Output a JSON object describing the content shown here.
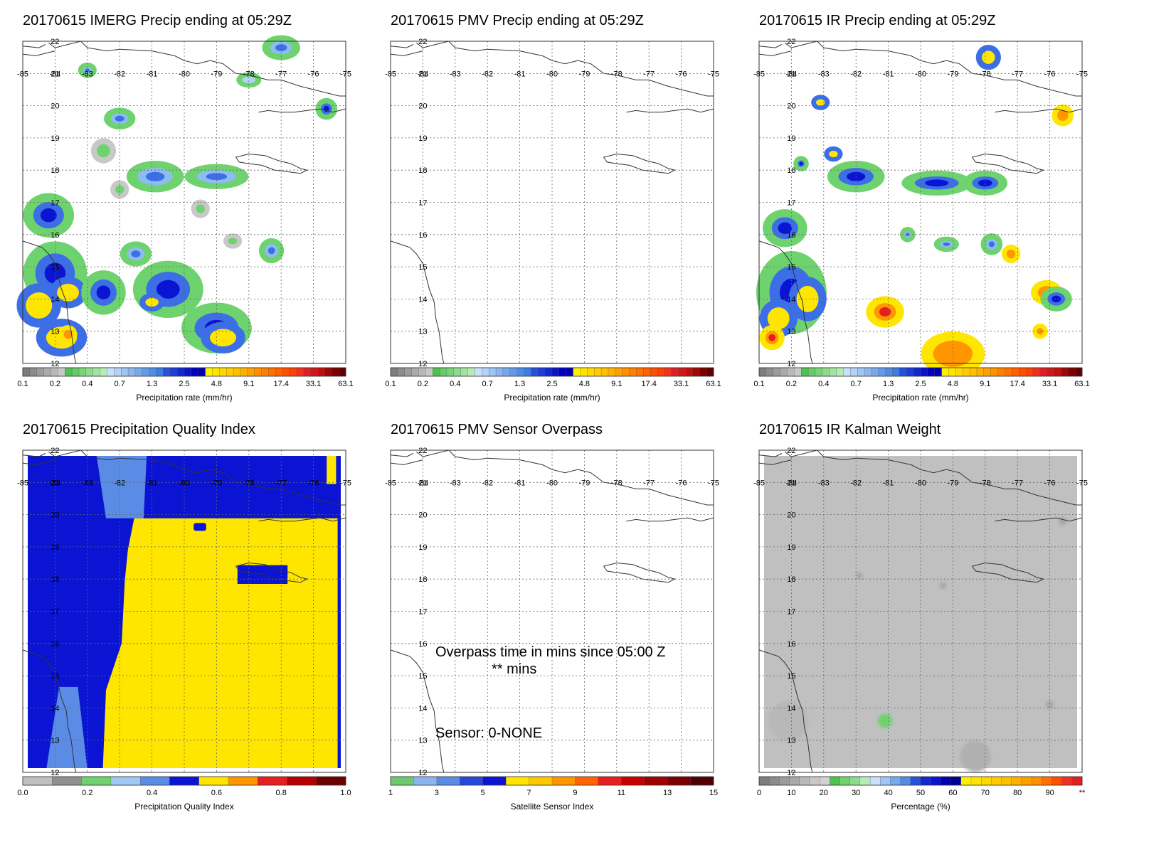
{
  "colors": {
    "background": "#ffffff",
    "grid": "#666666",
    "coast": "#333333",
    "gray_field": "#c8c8c8",
    "dark_gray": "#a0a0a0",
    "deep_blue": "#0a14d2",
    "mid_blue": "#3c6ee6",
    "light_blue": "#8cbcf0",
    "green": "#6ed26e",
    "yellow": "#ffe600",
    "orange": "#ff9600",
    "red": "#e61e1e"
  },
  "panels": [
    {
      "title": "20170615 IMERG Precip ending at 05:29Z",
      "lon_labels": [
        "-85",
        "-84",
        "-83",
        "-82",
        "-81",
        "-80",
        "-79",
        "-78",
        "-77",
        "-76",
        "-75"
      ],
      "lat_labels": [
        "22",
        "21",
        "20",
        "19",
        "18",
        "17",
        "16",
        "15",
        "14",
        "13",
        "12"
      ],
      "colorbar": {
        "label": "Precipitation rate (mm/hr)",
        "ticks": [
          "0.1",
          "0.2",
          "0.4",
          "0.7",
          "1.3",
          "2.5",
          "4.8",
          "9.1",
          "17.4",
          "33.1",
          "63.1"
        ],
        "scheme": "precip"
      },
      "field": "imerg"
    },
    {
      "title": "20170615 PMV Precip ending at 05:29Z",
      "lon_labels": [
        "-85",
        "-84",
        "-83",
        "-82",
        "-81",
        "-80",
        "-79",
        "-78",
        "-77",
        "-76",
        "-75"
      ],
      "lat_labels": [
        "22",
        "21",
        "20",
        "19",
        "18",
        "17",
        "16",
        "15",
        "14",
        "13",
        "12"
      ],
      "colorbar": {
        "label": "Precipitation rate (mm/hr)",
        "ticks": [
          "0.1",
          "0.2",
          "0.4",
          "0.7",
          "1.3",
          "2.5",
          "4.8",
          "9.1",
          "17.4",
          "33.1",
          "63.1"
        ],
        "scheme": "precip"
      },
      "field": "none"
    },
    {
      "title": "20170615 IR Precip ending at 05:29Z",
      "lon_labels": [
        "-85",
        "-84",
        "-83",
        "-82",
        "-81",
        "-80",
        "-79",
        "-78",
        "-77",
        "-76",
        "-75"
      ],
      "lat_labels": [
        "22",
        "21",
        "20",
        "19",
        "18",
        "17",
        "16",
        "15",
        "14",
        "13",
        "12"
      ],
      "colorbar": {
        "label": "Precipitation rate (mm/hr)",
        "ticks": [
          "0.1",
          "0.2",
          "0.4",
          "0.7",
          "1.3",
          "2.5",
          "4.8",
          "9.1",
          "17.4",
          "33.1",
          "63.1"
        ],
        "scheme": "precip"
      },
      "field": "ir"
    },
    {
      "title": "20170615 Precipitation Quality Index",
      "lon_labels": [
        "-85",
        "-84",
        "-83",
        "-82",
        "-81",
        "-80",
        "-79",
        "-78",
        "-77",
        "-76",
        "-75"
      ],
      "lat_labels": [
        "22",
        "21",
        "20",
        "19",
        "18",
        "17",
        "16",
        "15",
        "14",
        "13",
        "12"
      ],
      "colorbar": {
        "label": "Precipitation Quality Index",
        "ticks": [
          "0.0",
          "0.2",
          "0.4",
          "0.6",
          "0.8",
          "1.0"
        ],
        "scheme": "pqi"
      },
      "field": "pqi"
    },
    {
      "title": "20170615 PMV Sensor Overpass",
      "lon_labels": [
        "-85",
        "-84",
        "-83",
        "-82",
        "-81",
        "-80",
        "-79",
        "-78",
        "-77",
        "-76",
        "-75"
      ],
      "lat_labels": [
        "22",
        "21",
        "20",
        "19",
        "18",
        "17",
        "16",
        "15",
        "14",
        "13",
        "12"
      ],
      "colorbar": {
        "label": "Satellite Sensor Index",
        "ticks": [
          "1",
          "3",
          "5",
          "7",
          "9",
          "11",
          "13",
          "15"
        ],
        "scheme": "sensor"
      },
      "field": "none",
      "notes": {
        "line1": "Overpass time in mins since 05:00 Z",
        "line2": "** mins",
        "line3": "Sensor:   0-NONE"
      }
    },
    {
      "title": "20170615 IR Kalman Weight",
      "lon_labels": [
        "-85",
        "-84",
        "-83",
        "-82",
        "-81",
        "-80",
        "-79",
        "-78",
        "-77",
        "-76",
        "-75"
      ],
      "lat_labels": [
        "22",
        "21",
        "20",
        "19",
        "18",
        "17",
        "16",
        "15",
        "14",
        "13",
        "12"
      ],
      "colorbar": {
        "label": "Percentage (%)",
        "ticks": [
          "0",
          "10",
          "20",
          "30",
          "40",
          "50",
          "60",
          "70",
          "80",
          "90",
          "**"
        ],
        "scheme": "percent"
      },
      "field": "kalman"
    }
  ]
}
